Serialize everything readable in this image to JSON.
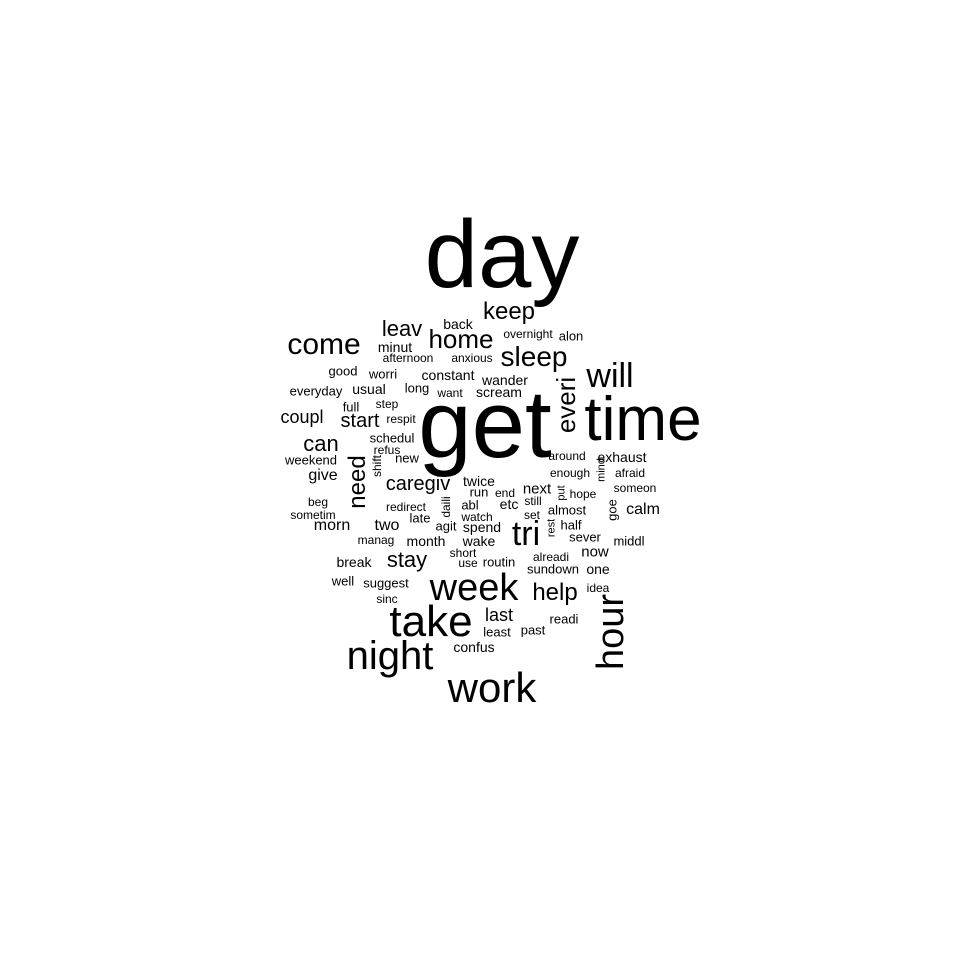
{
  "cloud": {
    "text_color": "#000000",
    "background_color": "#ffffff",
    "words": [
      {
        "text": "day"
      },
      {
        "text": "get"
      },
      {
        "text": "time"
      },
      {
        "text": "week"
      },
      {
        "text": "take"
      },
      {
        "text": "night"
      },
      {
        "text": "work"
      },
      {
        "text": "hour"
      },
      {
        "text": "come"
      },
      {
        "text": "will"
      },
      {
        "text": "sleep"
      },
      {
        "text": "everi"
      },
      {
        "text": "tri"
      },
      {
        "text": "home"
      },
      {
        "text": "keep"
      },
      {
        "text": "leav"
      },
      {
        "text": "need"
      },
      {
        "text": "can"
      },
      {
        "text": "help"
      },
      {
        "text": "stay"
      },
      {
        "text": "caregiv"
      },
      {
        "text": "start"
      },
      {
        "text": "coupl"
      },
      {
        "text": "give"
      },
      {
        "text": "morn"
      },
      {
        "text": "calm"
      },
      {
        "text": "last"
      },
      {
        "text": "back"
      },
      {
        "text": "overnight"
      },
      {
        "text": "alon"
      },
      {
        "text": "minut"
      },
      {
        "text": "afternoon"
      },
      {
        "text": "anxious"
      },
      {
        "text": "good"
      },
      {
        "text": "worri"
      },
      {
        "text": "constant"
      },
      {
        "text": "wander"
      },
      {
        "text": "everyday"
      },
      {
        "text": "usual"
      },
      {
        "text": "long"
      },
      {
        "text": "want"
      },
      {
        "text": "scream"
      },
      {
        "text": "full"
      },
      {
        "text": "step"
      },
      {
        "text": "respit"
      },
      {
        "text": "schedul"
      },
      {
        "text": "refus"
      },
      {
        "text": "weekend"
      },
      {
        "text": "new"
      },
      {
        "text": "shift"
      },
      {
        "text": "around"
      },
      {
        "text": "exhaust"
      },
      {
        "text": "enough"
      },
      {
        "text": "mind"
      },
      {
        "text": "afraid"
      },
      {
        "text": "twice"
      },
      {
        "text": "run"
      },
      {
        "text": "end"
      },
      {
        "text": "next"
      },
      {
        "text": "put"
      },
      {
        "text": "hope"
      },
      {
        "text": "someon"
      },
      {
        "text": "beg"
      },
      {
        "text": "redirect"
      },
      {
        "text": "daili"
      },
      {
        "text": "abl"
      },
      {
        "text": "etc"
      },
      {
        "text": "still"
      },
      {
        "text": "goe"
      },
      {
        "text": "sometim"
      },
      {
        "text": "late"
      },
      {
        "text": "watch"
      },
      {
        "text": "set"
      },
      {
        "text": "almost"
      },
      {
        "text": "two"
      },
      {
        "text": "agit"
      },
      {
        "text": "spend"
      },
      {
        "text": "rest"
      },
      {
        "text": "half"
      },
      {
        "text": "manag"
      },
      {
        "text": "month"
      },
      {
        "text": "wake"
      },
      {
        "text": "sever"
      },
      {
        "text": "middl"
      },
      {
        "text": "short"
      },
      {
        "text": "alreadi"
      },
      {
        "text": "now"
      },
      {
        "text": "break"
      },
      {
        "text": "use"
      },
      {
        "text": "routin"
      },
      {
        "text": "sundown"
      },
      {
        "text": "one"
      },
      {
        "text": "well"
      },
      {
        "text": "suggest"
      },
      {
        "text": "idea"
      },
      {
        "text": "sinc"
      },
      {
        "text": "readi"
      },
      {
        "text": "least"
      },
      {
        "text": "past"
      },
      {
        "text": "confus"
      }
    ]
  }
}
